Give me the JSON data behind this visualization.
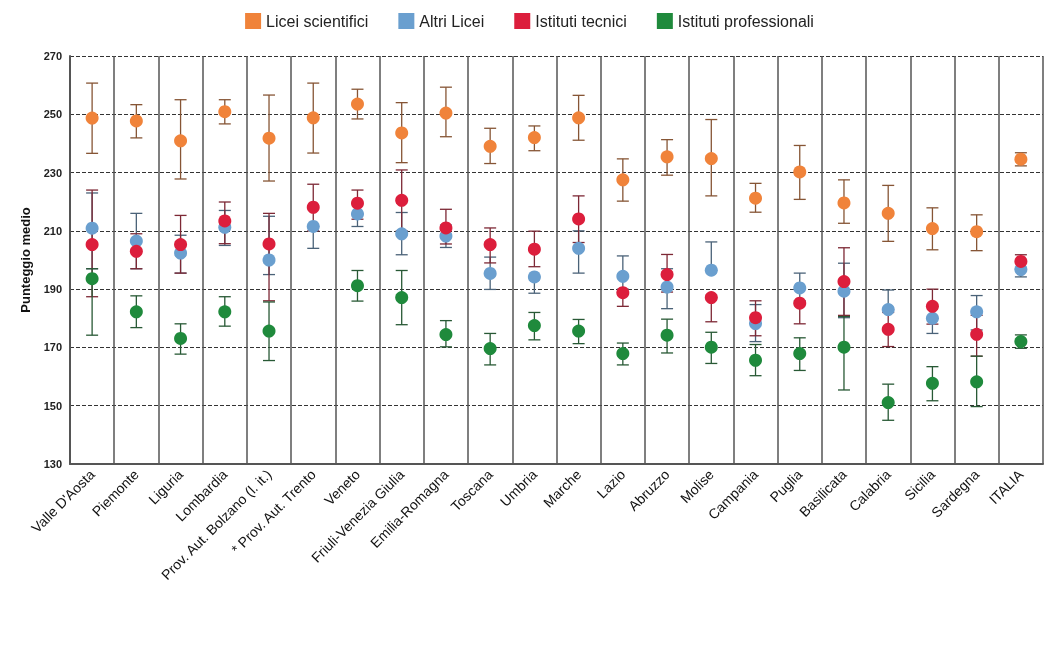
{
  "chart_data": {
    "type": "scatter",
    "ylabel": "Punteggio medio",
    "categories": [
      "Valle D'Aosta",
      "Piemonte",
      "Liguria",
      "Lombardia",
      "Prov. Aut. Bolzano (l. it.)",
      "* Prov. Aut. Trento",
      "Veneto",
      "Friuli-Venezia Giulia",
      "Emilia-Romagna",
      "Toscana",
      "Umbria",
      "Marche",
      "Lazio",
      "Abruzzo",
      "Molise",
      "Campania",
      "Puglia",
      "Basilicata",
      "Calabria",
      "Sicilia",
      "Sardegna",
      "ITALIA"
    ],
    "ylim": [
      130,
      270
    ],
    "yticks": [
      130,
      150,
      170,
      190,
      210,
      230,
      250,
      270
    ],
    "grid": true,
    "legend": "top",
    "marker": "circle",
    "series": [
      {
        "name": "Licei scientifici",
        "color": "#f0833a",
        "values": [
          248.7,
          247.7,
          240.9,
          250.9,
          241.8,
          248.8,
          253.5,
          243.6,
          250.4,
          239,
          242,
          248.8,
          227.5,
          235.4,
          234.8,
          221.2,
          230.2,
          219.6,
          216,
          210.8,
          209.7,
          234.6
        ],
        "errors": [
          [
            236.6,
            260.7
          ],
          [
            241.9,
            253.3
          ],
          [
            227.8,
            255
          ],
          [
            246.7,
            255
          ],
          [
            227.1,
            256.6
          ],
          [
            236.7,
            260.7
          ],
          [
            248.4,
            258.6
          ],
          [
            233.4,
            254
          ],
          [
            242.3,
            259.3
          ],
          [
            233.1,
            245.2
          ],
          [
            237.5,
            246
          ],
          [
            241.1,
            256.5
          ],
          [
            220.2,
            234.7
          ],
          [
            229.1,
            241.3
          ],
          [
            222,
            248.2
          ],
          [
            216.4,
            226.3
          ],
          [
            220.8,
            239.3
          ],
          [
            212.6,
            227.5
          ],
          [
            206.4,
            225.6
          ],
          [
            203.5,
            217.9
          ],
          [
            203.2,
            215.5
          ],
          [
            232.3,
            236.8
          ]
        ]
      },
      {
        "name": "Altri Licei",
        "color": "#6a9fcf",
        "values": [
          210.9,
          206.5,
          202.4,
          211.2,
          200,
          211.5,
          215.8,
          209,
          208.2,
          195.4,
          194.2,
          204,
          194.4,
          190.7,
          196.5,
          178.2,
          190.4,
          189.3,
          183,
          180,
          182.2,
          196.7
        ],
        "errors": [
          [
            197,
            223
          ],
          [
            197,
            216
          ],
          [
            195.5,
            208.5
          ],
          [
            205,
            217
          ],
          [
            195,
            215
          ],
          [
            204,
            211.5
          ],
          [
            211.5,
            215.8
          ],
          [
            201.8,
            216.3
          ],
          [
            204.3,
            212
          ],
          [
            189.9,
            201
          ],
          [
            188.6,
            194.2
          ],
          [
            195.5,
            210
          ],
          [
            190,
            201.4
          ],
          [
            183.3,
            197
          ],
          [
            196.5,
            206.2
          ],
          [
            172,
            184.7
          ],
          [
            186,
            195.5
          ],
          [
            180.2,
            198.9
          ],
          [
            183,
            189.7
          ],
          [
            174.8,
            180
          ],
          [
            176,
            187.8
          ],
          [
            194.2,
            196.7
          ]
        ]
      },
      {
        "name": "Istituti tecnici",
        "color": "#dc1e3c",
        "values": [
          205.3,
          203,
          205.3,
          213.4,
          205.5,
          218.1,
          219.5,
          220.5,
          211,
          205.3,
          203.7,
          214.1,
          188.8,
          195,
          187.1,
          180.2,
          185.2,
          192.6,
          176.2,
          184.1,
          174.5,
          199.5
        ],
        "errors": [
          [
            187.4,
            224
          ],
          [
            197,
            209
          ],
          [
            195.5,
            215.3
          ],
          [
            205.6,
            219.9
          ],
          [
            186,
            216
          ],
          [
            210,
            226
          ],
          [
            214,
            224
          ],
          [
            210,
            230.9
          ],
          [
            205.5,
            217.4
          ],
          [
            199,
            211
          ],
          [
            197.7,
            209.9
          ],
          [
            206,
            222
          ],
          [
            184.1,
            188.8
          ],
          [
            189,
            201.9
          ],
          [
            178.8,
            187.1
          ],
          [
            174,
            186
          ],
          [
            178.1,
            185.2
          ],
          [
            181,
            204.2
          ],
          [
            170.3,
            182
          ],
          [
            178,
            190
          ],
          [
            167,
            181
          ],
          [
            197,
            201.8
          ]
        ]
      },
      {
        "name": "Istituti professionali",
        "color": "#1f8a3c",
        "values": [
          193.6,
          182.2,
          173.1,
          182.2,
          175.6,
          null,
          191.2,
          187.1,
          174.4,
          169.6,
          177.5,
          175.6,
          167.9,
          174.2,
          170.1,
          165.6,
          167.9,
          170.1,
          151.1,
          157.7,
          158.2,
          172
        ],
        "errors": [
          [
            174.2,
            197
          ],
          [
            176.8,
            187.7
          ],
          [
            167.7,
            178.1
          ],
          [
            177.3,
            187.4
          ],
          [
            165.5,
            185.6
          ],
          null,
          [
            185.9,
            196.4
          ],
          [
            177.8,
            196.4
          ],
          [
            170.2,
            179.2
          ],
          [
            164,
            174.8
          ],
          [
            172.6,
            182
          ],
          [
            171.3,
            179.6
          ],
          [
            164,
            171.5
          ],
          [
            168.1,
            179.7
          ],
          [
            164.5,
            175.2
          ],
          [
            160.3,
            171
          ],
          [
            162.1,
            173.3
          ],
          [
            155.4,
            180.6
          ],
          [
            145,
            157.4
          ],
          [
            151.7,
            163.4
          ],
          [
            149.7,
            167
          ],
          [
            169.7,
            174.3
          ]
        ]
      }
    ]
  }
}
